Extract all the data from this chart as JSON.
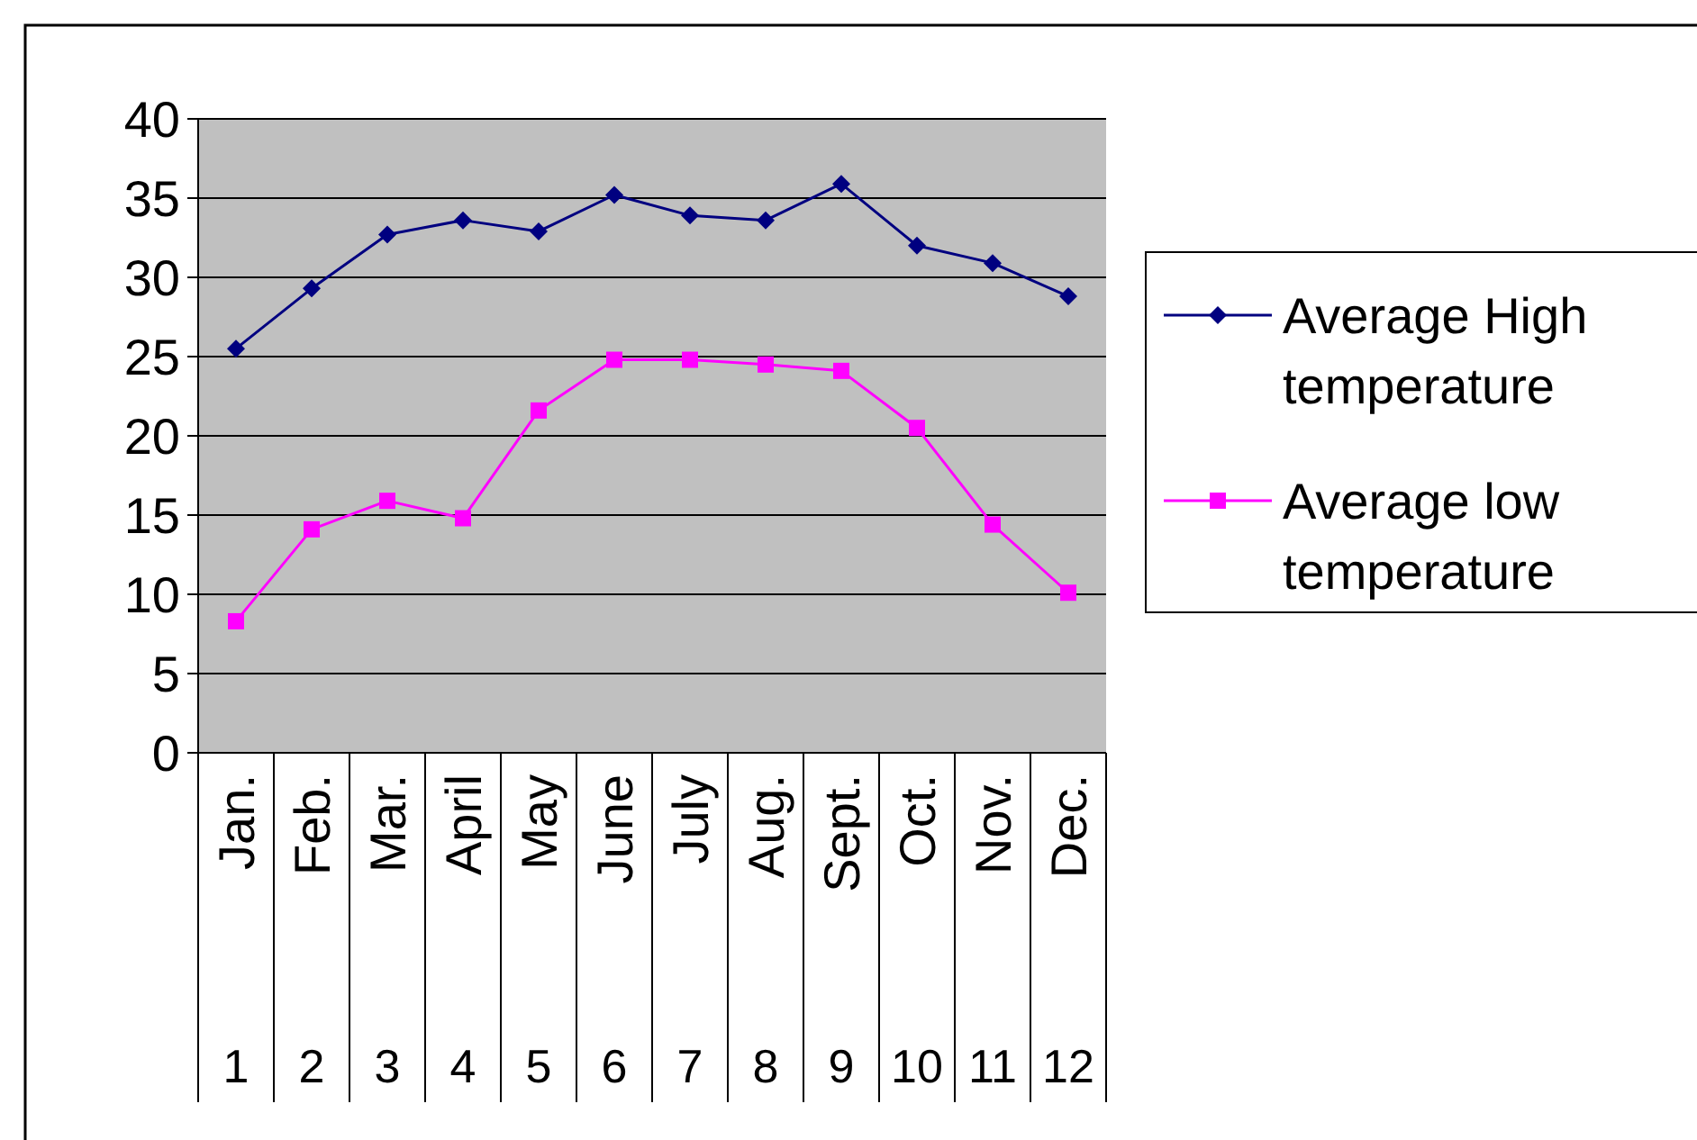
{
  "chart_data": {
    "type": "line",
    "x": [
      1,
      2,
      3,
      4,
      5,
      6,
      7,
      8,
      9,
      10,
      11,
      12
    ],
    "series": [
      {
        "name": "Average High temperature",
        "color": "#000080",
        "marker": "diamond",
        "values": [
          25.5,
          29.3,
          32.7,
          33.6,
          32.9,
          35.2,
          33.9,
          33.6,
          35.9,
          32,
          30.9,
          28.8
        ]
      },
      {
        "name": "Average low temperature",
        "color": "#ff00ff",
        "marker": "square",
        "values": [
          8.3,
          14.1,
          15.9,
          14.8,
          21.6,
          24.8,
          24.8,
          24.5,
          24.1,
          20.5,
          14.4,
          10.1
        ]
      }
    ],
    "xlim": [
      0.5,
      12.5
    ],
    "xticks": [
      1,
      2,
      3,
      4,
      5,
      6,
      7,
      8,
      9,
      10,
      11,
      12
    ],
    "ylim": [
      0,
      40
    ],
    "yticks": [
      0,
      5,
      10,
      15,
      20,
      25,
      30,
      35,
      40
    ],
    "grid": "y",
    "legend": "right",
    "annotations": [
      "Jan.",
      "Feb.",
      "Mar.",
      "April",
      "May",
      "June",
      "July",
      "Aug.",
      "Sept.",
      "Oct.",
      "Nov.",
      "Dec."
    ]
  }
}
